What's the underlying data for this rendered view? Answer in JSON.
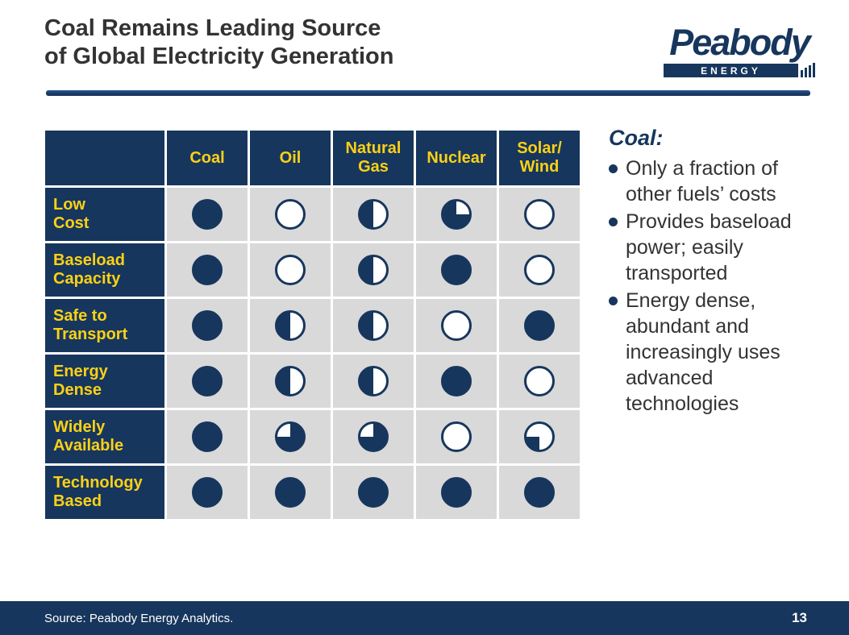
{
  "slide": {
    "title": "Coal Remains Leading Source\nof Global Electricity Generation",
    "source": "Source: Peabody Energy Analytics.",
    "page_number": "13"
  },
  "logo": {
    "name": "Peabody",
    "tagline": "ENERGY"
  },
  "table": {
    "corner": "",
    "columns": [
      "Coal",
      "Oil",
      "Natural\nGas",
      "Nuclear",
      "Solar/\nWind"
    ],
    "rows": [
      {
        "label": "Low\nCost",
        "cells": [
          "full",
          "empty",
          "half-left",
          "three-quarter-topright",
          "empty"
        ]
      },
      {
        "label": "Baseload\nCapacity",
        "cells": [
          "full",
          "empty",
          "half-left",
          "full",
          "empty"
        ]
      },
      {
        "label": "Safe to\nTransport",
        "cells": [
          "full",
          "half-left",
          "half-left",
          "empty",
          "full"
        ]
      },
      {
        "label": "Energy\nDense",
        "cells": [
          "full",
          "half-left",
          "half-left",
          "full",
          "empty"
        ]
      },
      {
        "label": "Widely\nAvailable",
        "cells": [
          "full",
          "three-quarter-topleft",
          "three-quarter-topleft",
          "empty",
          "quarter-bottomleft"
        ]
      },
      {
        "label": "Technology\nBased",
        "cells": [
          "full",
          "full",
          "full",
          "full",
          "full"
        ]
      }
    ]
  },
  "panel": {
    "heading": "Coal:",
    "bullets": [
      "Only a fraction of other fuels’ costs",
      "Provides baseload power; easily transported",
      "Energy dense, abundant and increasingly uses advanced technologies"
    ]
  },
  "chart_data": {
    "type": "table",
    "title": "Fuel attribute comparison (Harvey ball fill fraction, 0 = empty, 1 = full)",
    "columns": [
      "Coal",
      "Oil",
      "Natural Gas",
      "Nuclear",
      "Solar/Wind"
    ],
    "rows": [
      "Low Cost",
      "Baseload Capacity",
      "Safe to Transport",
      "Energy Dense",
      "Widely Available",
      "Technology Based"
    ],
    "values": [
      [
        1,
        0,
        0.5,
        0.75,
        0
      ],
      [
        1,
        0,
        0.5,
        1,
        0
      ],
      [
        1,
        0.5,
        0.5,
        0,
        1
      ],
      [
        1,
        0.5,
        0.5,
        1,
        0
      ],
      [
        1,
        0.75,
        0.75,
        0,
        0.25
      ],
      [
        1,
        1,
        1,
        1,
        1
      ]
    ]
  },
  "colors": {
    "navy": "#17365D",
    "yellow": "#FBD116",
    "cell_gray": "#D9D9D9",
    "text_gray": "#333333"
  }
}
